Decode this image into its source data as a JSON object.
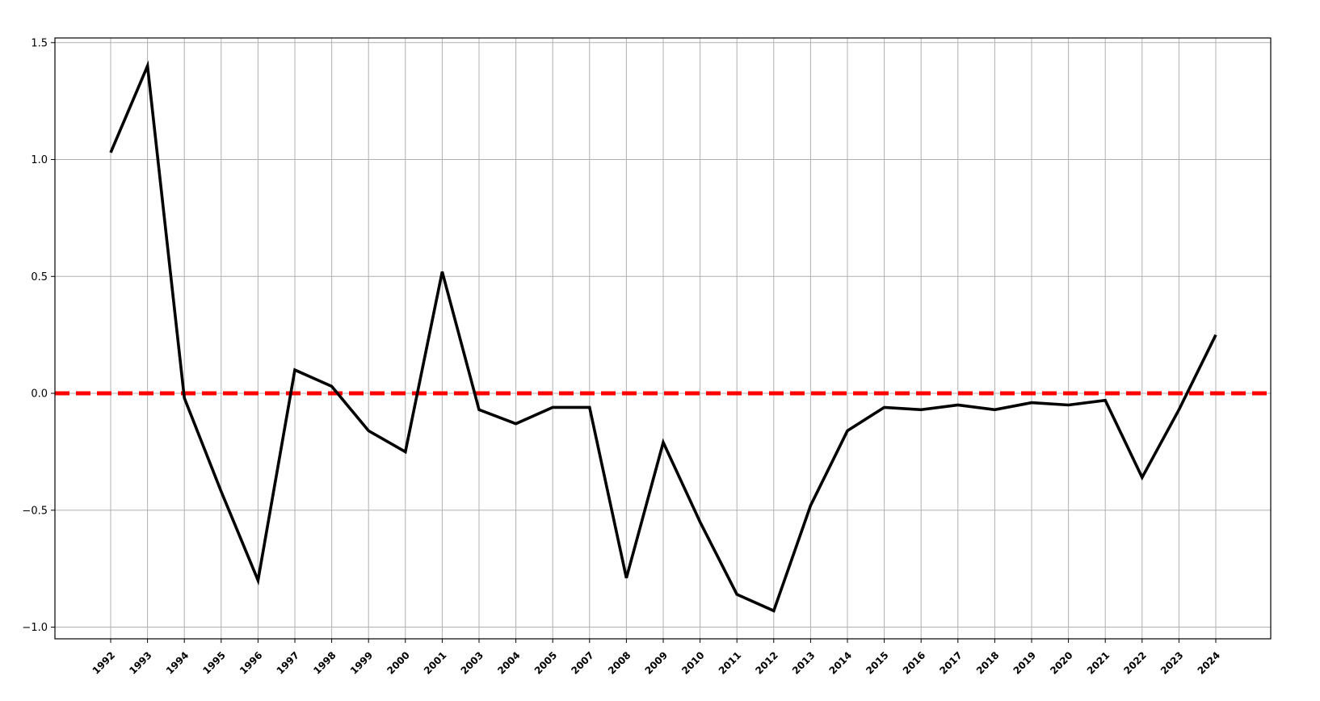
{
  "chart_data": {
    "type": "line",
    "title": "",
    "xlabel": "",
    "ylabel": "",
    "categories": [
      "1992",
      "1993",
      "1994",
      "1995",
      "1996",
      "1997",
      "1998",
      "1999",
      "2000",
      "2001",
      "2003",
      "2004",
      "2005",
      "2007",
      "2008",
      "2009",
      "2010",
      "2011",
      "2012",
      "2013",
      "2014",
      "2015",
      "2016",
      "2017",
      "2018",
      "2019",
      "2020",
      "2021",
      "2022",
      "2023",
      "2024"
    ],
    "series": [
      {
        "values": [
          1.03,
          1.4,
          -0.02,
          -0.42,
          -0.8,
          0.1,
          0.03,
          -0.16,
          -0.25,
          0.52,
          -0.07,
          -0.13,
          -0.06,
          -0.06,
          -0.79,
          -0.21,
          -0.55,
          -0.86,
          -0.93,
          -0.48,
          -0.16,
          -0.06,
          -0.07,
          -0.05,
          -0.07,
          -0.04,
          -0.05,
          -0.03,
          -0.36,
          -0.07,
          0.25
        ],
        "color": "#000000"
      }
    ],
    "reference_line": {
      "y": 0.0,
      "color": "#ff0000",
      "style": "dashed"
    },
    "ylim": [
      -1.05,
      1.52
    ],
    "yticks": [
      1.5,
      1.0,
      0.5,
      0.0,
      -0.5,
      -1.0
    ],
    "ytick_labels": [
      "1.5",
      "1.0",
      "0.5",
      "0.0",
      "−0.5",
      "−1.0"
    ],
    "grid": true
  }
}
